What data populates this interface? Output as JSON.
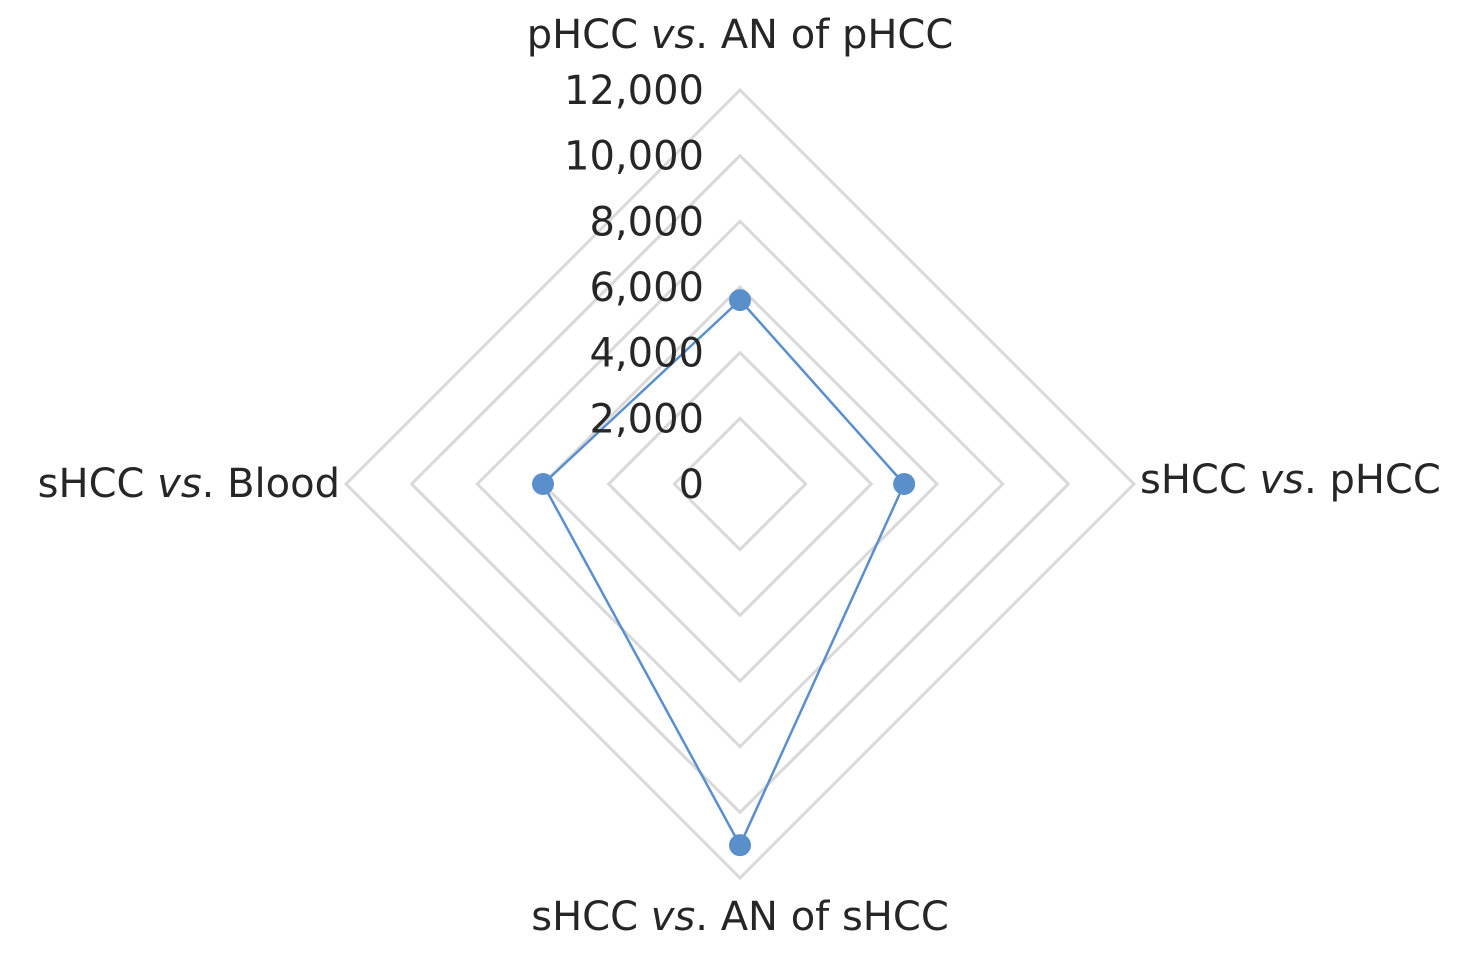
{
  "chart_data": {
    "type": "radar",
    "title": "",
    "categories": [
      {
        "prefix": "pHCC ",
        "italic": "vs",
        "suffix": ". AN of pHCC"
      },
      {
        "prefix": "sHCC ",
        "italic": "vs",
        "suffix": ". pHCC"
      },
      {
        "prefix": "sHCC ",
        "italic": "vs",
        "suffix": ". AN of sHCC"
      },
      {
        "prefix": "sHCC ",
        "italic": "vs",
        "suffix": ". Blood"
      }
    ],
    "series": [
      {
        "values": [
          5600,
          5000,
          11000,
          6000
        ],
        "color": "#5b8fcb"
      }
    ],
    "rlim": [
      0,
      12000
    ],
    "ticks": [
      0,
      2000,
      4000,
      6000,
      8000,
      10000,
      12000
    ],
    "tick_labels": [
      "0",
      "2,000",
      "4,000",
      "6,000",
      "8,000",
      "10,000",
      "12,000"
    ],
    "grid": true,
    "grid_color": "#d9d9d9",
    "legend": "none"
  }
}
